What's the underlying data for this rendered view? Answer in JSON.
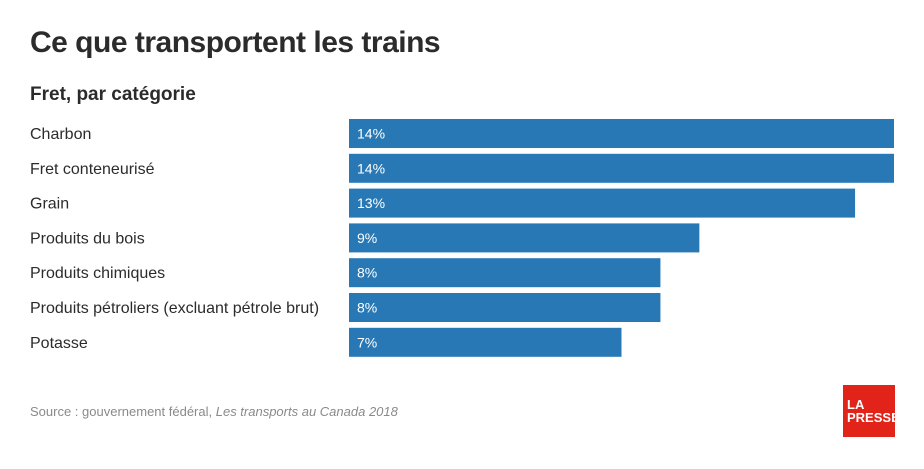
{
  "header": {
    "title": "Ce que transportent les trains",
    "subtitle": "Fret, par catégorie"
  },
  "footer": {
    "source_prefix": "Source : gouvernement fédéral, ",
    "source_title": "Les transports au Canada 2018"
  },
  "logo": {
    "line1": "LA",
    "line2": "PRESSE",
    "color": "#e2231a"
  },
  "colors": {
    "bar": "#2878b5"
  },
  "chart_data": {
    "type": "bar",
    "orientation": "horizontal",
    "title": "Fret, par catégorie",
    "categories": [
      "Charbon",
      "Fret conteneurisé",
      "Grain",
      "Produits du bois",
      "Produits chimiques",
      "Produits pétroliers (excluant pétrole brut)",
      "Potasse"
    ],
    "values": [
      14,
      14,
      13,
      9,
      8,
      8,
      7
    ],
    "value_labels": [
      "14%",
      "14%",
      "13%",
      "9%",
      "8%",
      "8%",
      "7%"
    ],
    "unit": "%",
    "grid": false
  }
}
